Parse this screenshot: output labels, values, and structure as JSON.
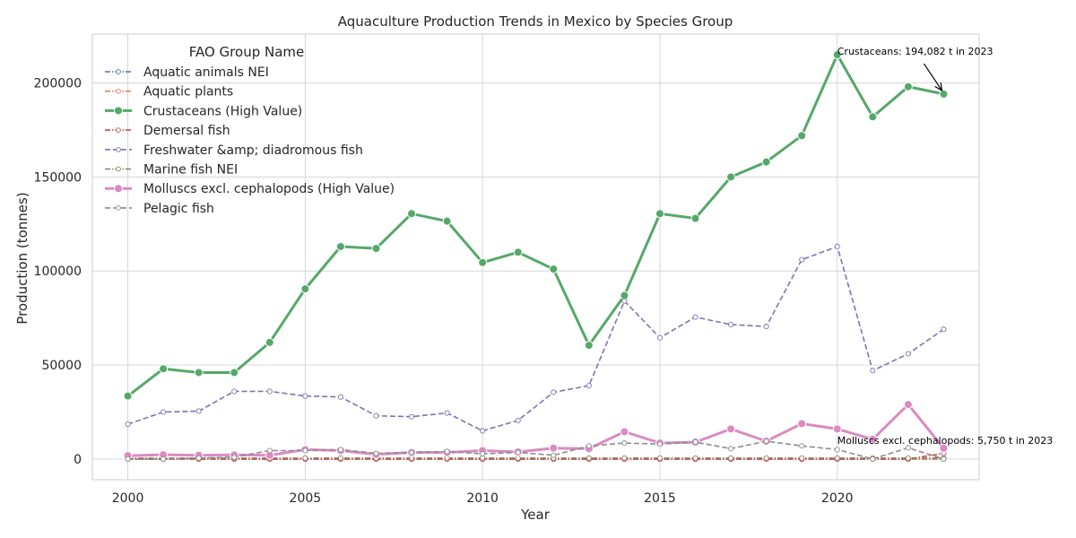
{
  "chart_data": {
    "type": "line",
    "title": "Aquaculture Production Trends in Mexico by Species Group",
    "xlabel": "Year",
    "ylabel": "Production (tonnes)",
    "xlim": [
      1999,
      2024
    ],
    "ylim": [
      -11000,
      226000
    ],
    "x_ticks": [
      2000,
      2005,
      2010,
      2015,
      2020
    ],
    "y_ticks": [
      0,
      50000,
      100000,
      150000,
      200000
    ],
    "grid": true,
    "legend_title": "FAO Group Name",
    "legend_position": "upper-left",
    "x": [
      2000,
      2001,
      2002,
      2003,
      2004,
      2005,
      2006,
      2007,
      2008,
      2009,
      2010,
      2011,
      2012,
      2013,
      2014,
      2015,
      2016,
      2017,
      2018,
      2019,
      2020,
      2021,
      2022,
      2023
    ],
    "series": [
      {
        "name": "Aquatic animals NEI",
        "color": "#4c72b0",
        "style": "dash-dot",
        "highlight": false,
        "values": [
          0,
          0,
          0,
          0,
          0,
          0,
          0,
          0,
          0,
          0,
          0,
          0,
          0,
          0,
          0,
          0,
          0,
          0,
          0,
          0,
          0,
          0,
          0,
          0
        ]
      },
      {
        "name": "Aquatic plants",
        "color": "#dd8452",
        "style": "dash-dot",
        "highlight": false,
        "values": [
          0,
          0,
          0,
          0,
          0,
          0,
          0,
          0,
          0,
          0,
          0,
          0,
          0,
          0,
          0,
          0,
          0,
          0,
          0,
          0,
          0,
          0,
          0,
          0
        ]
      },
      {
        "name": "Crustaceans (High Value)",
        "color": "#55a868",
        "style": "solid",
        "highlight": true,
        "values": [
          33500,
          48000,
          46000,
          46000,
          62000,
          90500,
          113000,
          112000,
          130500,
          126500,
          104500,
          110000,
          101000,
          60500,
          87000,
          130500,
          128000,
          150000,
          158000,
          172000,
          215000,
          182000,
          198000,
          194082
        ]
      },
      {
        "name": "Demersal fish",
        "color": "#c44e52",
        "style": "dash-dot",
        "highlight": false,
        "values": [
          0,
          0,
          0,
          0,
          0,
          0,
          0,
          0,
          0,
          0,
          0,
          0,
          0,
          0,
          0,
          0,
          0,
          0,
          0,
          0,
          0,
          0,
          0,
          3000
        ]
      },
      {
        "name": "Freshwater &amp; diadromous fish",
        "color": "#8172b3",
        "style": "dashed",
        "highlight": false,
        "values": [
          18500,
          25000,
          25500,
          36000,
          36000,
          33500,
          33000,
          23000,
          22500,
          24500,
          15000,
          20500,
          35500,
          39000,
          84000,
          64500,
          75500,
          71500,
          70500,
          106000,
          113000,
          47000,
          56000,
          69000
        ]
      },
      {
        "name": "Marine fish NEI",
        "color": "#937860",
        "style": "dash-dot",
        "highlight": false,
        "values": [
          500,
          500,
          500,
          500,
          500,
          500,
          500,
          500,
          500,
          500,
          500,
          500,
          500,
          500,
          500,
          500,
          500,
          500,
          500,
          500,
          500,
          500,
          500,
          500
        ]
      },
      {
        "name": "Molluscs excl. cephalopods (High Value)",
        "color": "#da8bc3",
        "style": "solid",
        "highlight": true,
        "values": [
          1800,
          2300,
          2000,
          2200,
          2000,
          5000,
          4500,
          2500,
          3500,
          3500,
          4500,
          3800,
          5800,
          5500,
          14500,
          8500,
          9000,
          16000,
          9500,
          18800,
          16000,
          10500,
          29000,
          5750
        ]
      },
      {
        "name": "Pelagic fish",
        "color": "#8c8c8c",
        "style": "dashed",
        "highlight": false,
        "values": [
          0,
          0,
          500,
          1000,
          4500,
          4500,
          5000,
          3000,
          3500,
          4000,
          2800,
          3500,
          2000,
          7000,
          8500,
          8000,
          9000,
          5500,
          9500,
          7000,
          5000,
          0,
          6000,
          0
        ]
      }
    ],
    "annotations": [
      {
        "text": "Crustaceans: 194,082 t in 2023",
        "x": 2023,
        "y": 194082,
        "text_x": 2020,
        "text_y": 215000
      },
      {
        "text": "Molluscs excl. cephalopods: 5,750 t in 2023",
        "x": 2023,
        "y": 5750,
        "text_x": 2020,
        "text_y": 8000
      }
    ]
  }
}
